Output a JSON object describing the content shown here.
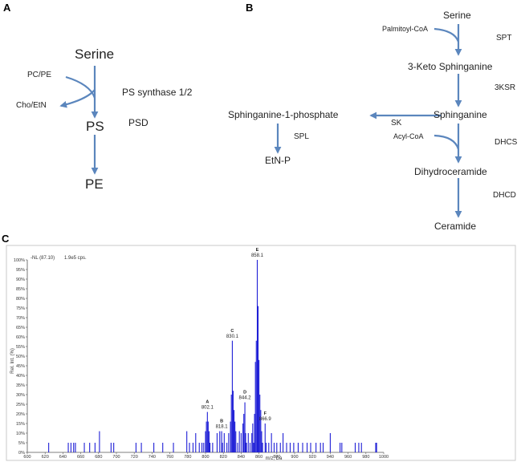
{
  "panel_a": {
    "letter": "A",
    "serine": "Serine",
    "ps": "PS",
    "pe": "PE",
    "pc_pe": "PC/PE",
    "cho_etn": "Cho/EtN",
    "ps_synthase": "PS synthase 1/2",
    "psd": "PSD"
  },
  "panel_b": {
    "letter": "B",
    "serine": "Serine",
    "palmitoyl_coa": "Palmitoyl-CoA",
    "spt": "SPT",
    "keto_sphinganine": "3-Keto Sphinganine",
    "ksr": "3KSR",
    "sphinganine": "Sphinganine",
    "sphinganine_1p": "Sphinganine-1-phosphate",
    "sk": "SK",
    "spl": "SPL",
    "etn_p": "EtN-P",
    "acyl_coa": "Acyl-CoA",
    "dhcs": "DHCS",
    "dihydroceramide": "Dihydroceramide",
    "dhcd": "DHCD",
    "ceramide": "Ceramide"
  },
  "panel_c": {
    "letter": "C",
    "scan_label": "-NL (87.10)",
    "intensity_label": "1.9e5 cps.",
    "x_axis_label": "m/z, Da",
    "y_axis_label": "Rel. Int. (%)",
    "x_ticks": [
      "600",
      "620",
      "640",
      "660",
      "680",
      "700",
      "720",
      "740",
      "760",
      "780",
      "800",
      "820",
      "840",
      "860",
      "880",
      "900",
      "920",
      "940",
      "960",
      "980",
      "1000"
    ],
    "y_ticks": [
      "0%",
      "5%",
      "10%",
      "15%",
      "20%",
      "25%",
      "30%",
      "35%",
      "40%",
      "45%",
      "50%",
      "55%",
      "60%",
      "65%",
      "70%",
      "75%",
      "80%",
      "85%",
      "90%",
      "95%",
      "100%"
    ]
  },
  "chart_data": {
    "type": "bar",
    "x_label": "m/z, Da",
    "y_label": "Rel. Int. (%)",
    "xlim": [
      600,
      1000
    ],
    "ylim": [
      0,
      100
    ],
    "peak_annotations": [
      {
        "letter": "A",
        "mz_label": "802.1",
        "x": 802.1,
        "y": 21
      },
      {
        "letter": "B",
        "mz_label": "818.1",
        "x": 818.1,
        "y": 11
      },
      {
        "letter": "C",
        "mz_label": "830.1",
        "x": 830.1,
        "y": 58
      },
      {
        "letter": "D",
        "mz_label": "844.2",
        "x": 844.2,
        "y": 26
      },
      {
        "letter": "E",
        "mz_label": "858.1",
        "x": 858.1,
        "y": 100
      },
      {
        "letter": "F",
        "mz_label": "866.9",
        "x": 866.9,
        "y": 15
      }
    ],
    "bars": [
      [
        624,
        5
      ],
      [
        646,
        5
      ],
      [
        649,
        5
      ],
      [
        652,
        5
      ],
      [
        654,
        5
      ],
      [
        664,
        5
      ],
      [
        670,
        5
      ],
      [
        676,
        5
      ],
      [
        681,
        11
      ],
      [
        694,
        5
      ],
      [
        697,
        5
      ],
      [
        722,
        5
      ],
      [
        728,
        5
      ],
      [
        742,
        5
      ],
      [
        752,
        5
      ],
      [
        764,
        5
      ],
      [
        779,
        11
      ],
      [
        782,
        5
      ],
      [
        786,
        5
      ],
      [
        789,
        10
      ],
      [
        793,
        5
      ],
      [
        796,
        5
      ],
      [
        798,
        5
      ],
      [
        800,
        11
      ],
      [
        801,
        16
      ],
      [
        802.1,
        21
      ],
      [
        803,
        16
      ],
      [
        804,
        11
      ],
      [
        805,
        5
      ],
      [
        808,
        5
      ],
      [
        813,
        10
      ],
      [
        816,
        11
      ],
      [
        818.1,
        11
      ],
      [
        819,
        5
      ],
      [
        821,
        10
      ],
      [
        824,
        5
      ],
      [
        826,
        10
      ],
      [
        828,
        16
      ],
      [
        829,
        30
      ],
      [
        830.1,
        58
      ],
      [
        831,
        32
      ],
      [
        832,
        22
      ],
      [
        833,
        16
      ],
      [
        834,
        11
      ],
      [
        836,
        5
      ],
      [
        838,
        11
      ],
      [
        840,
        10
      ],
      [
        842,
        15
      ],
      [
        843,
        20
      ],
      [
        844.2,
        26
      ],
      [
        845,
        10
      ],
      [
        846,
        5
      ],
      [
        848,
        10
      ],
      [
        850,
        5
      ],
      [
        852,
        10
      ],
      [
        853,
        15
      ],
      [
        854,
        5
      ],
      [
        855,
        20
      ],
      [
        856,
        47
      ],
      [
        857,
        58
      ],
      [
        858.1,
        100
      ],
      [
        859,
        76
      ],
      [
        860,
        48
      ],
      [
        861,
        30
      ],
      [
        862,
        22
      ],
      [
        863,
        11
      ],
      [
        864,
        5
      ],
      [
        866.9,
        15
      ],
      [
        868,
        5
      ],
      [
        871,
        5
      ],
      [
        874,
        10
      ],
      [
        877,
        5
      ],
      [
        880,
        5
      ],
      [
        884,
        5
      ],
      [
        887,
        10
      ],
      [
        891,
        5
      ],
      [
        895,
        5
      ],
      [
        899,
        5
      ],
      [
        904,
        5
      ],
      [
        909,
        5
      ],
      [
        914,
        5
      ],
      [
        918,
        5
      ],
      [
        924,
        5
      ],
      [
        929,
        5
      ],
      [
        932,
        5
      ],
      [
        940,
        10
      ],
      [
        951,
        5
      ],
      [
        953,
        5
      ],
      [
        968,
        5
      ],
      [
        972,
        5
      ],
      [
        975,
        5
      ],
      [
        991,
        5
      ],
      [
        992,
        5
      ]
    ]
  }
}
